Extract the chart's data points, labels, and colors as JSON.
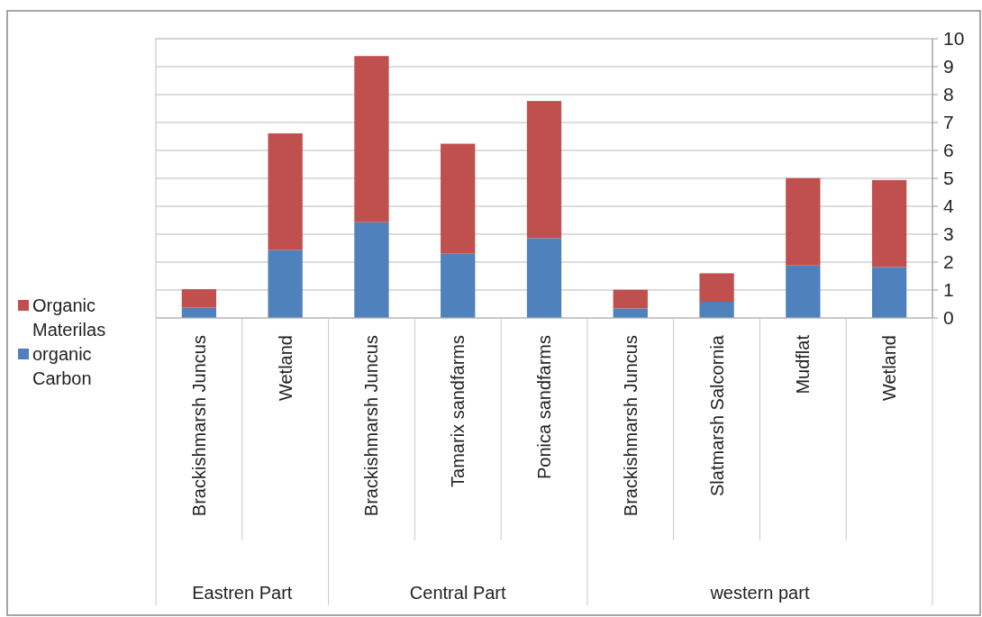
{
  "chart_data": {
    "type": "bar",
    "stacked": true,
    "categories": [
      "Brackishmarsh Juncus",
      "Wetland",
      "Brackishmarsh Juncus",
      "Tamarix sandfarms",
      "Ponica sandfarms",
      "Brackishmarsh Juncus",
      "Slatmarsh Salcornia",
      "Mudflat",
      "Wetland"
    ],
    "series": [
      {
        "name": "organic Carbon",
        "color": "#4f81bd",
        "values": [
          0.37,
          2.43,
          3.43,
          2.3,
          2.86,
          0.34,
          0.58,
          1.88,
          1.82
        ]
      },
      {
        "name": "Organic Materilas",
        "color": "#c0504d",
        "values": [
          0.66,
          4.18,
          5.95,
          3.94,
          4.91,
          0.67,
          1.02,
          3.13,
          3.12
        ]
      }
    ],
    "ylim": [
      0,
      10
    ],
    "yticks": [
      0,
      1,
      2,
      3,
      4,
      5,
      6,
      7,
      8,
      9,
      10
    ],
    "grid": "y",
    "legend": "left",
    "annotations": [
      "Eastren Part",
      "Central Part",
      "western part"
    ]
  }
}
